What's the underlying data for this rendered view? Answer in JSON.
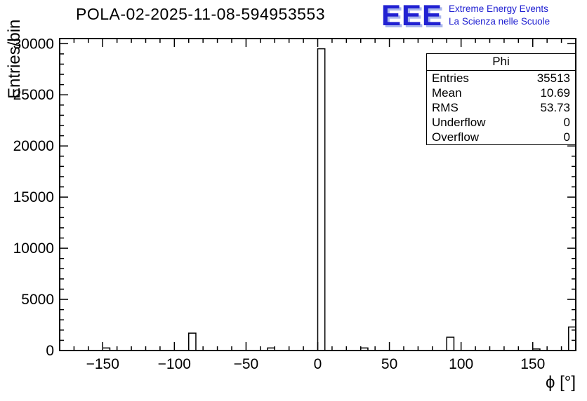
{
  "logo": {
    "wordmark": "EEE",
    "tagline1": "Extreme Energy Events",
    "tagline2": "La Scienza nelle Scuole",
    "color": "#2121d2"
  },
  "chart_data": {
    "type": "bar",
    "title": "POLA-02-2025-11-08-594953553",
    "xlabel": "ϕ [°]",
    "ylabel": "Entries/bin",
    "xlim": [
      -180,
      180
    ],
    "ylim": [
      0,
      30500
    ],
    "x_ticks": [
      -150,
      -100,
      -50,
      0,
      50,
      100,
      150
    ],
    "y_ticks": [
      0,
      5000,
      10000,
      15000,
      20000,
      25000,
      30000
    ],
    "x_tick_step": 50,
    "x_minor_step": 10,
    "y_tick_step": 5000,
    "y_minor_step": 1000,
    "grid": false,
    "legend": null,
    "bin_width": 5,
    "bars": [
      {
        "x": -150,
        "y": 250
      },
      {
        "x": -90,
        "y": 1700
      },
      {
        "x": -35,
        "y": 250
      },
      {
        "x": 0,
        "y": 29500
      },
      {
        "x": 30,
        "y": 250
      },
      {
        "x": 90,
        "y": 1300
      },
      {
        "x": 150,
        "y": 150
      },
      {
        "x": 175,
        "y": 2300
      }
    ],
    "stats": {
      "title": "Phi",
      "rows": [
        {
          "label": "Entries",
          "value": "35513"
        },
        {
          "label": "Mean",
          "value": "10.69"
        },
        {
          "label": "RMS",
          "value": "53.73"
        },
        {
          "label": "Underflow",
          "value": "0"
        },
        {
          "label": "Overflow",
          "value": "0"
        }
      ]
    }
  }
}
